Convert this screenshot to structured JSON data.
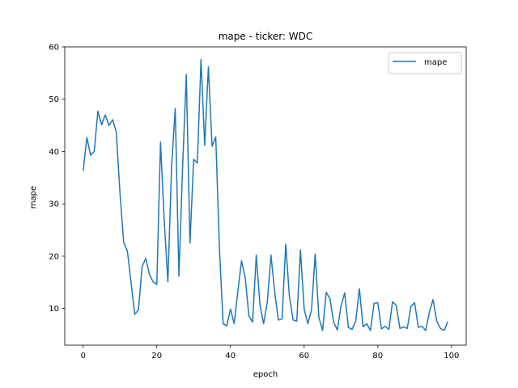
{
  "chart_data": {
    "type": "line",
    "title": "mape - ticker: WDC",
    "xlabel": "epoch",
    "ylabel": "mape",
    "xlim": [
      -5,
      104
    ],
    "ylim": [
      3,
      60
    ],
    "xticks": [
      0,
      20,
      40,
      60,
      80,
      100
    ],
    "yticks": [
      10,
      20,
      30,
      40,
      50,
      60
    ],
    "grid": false,
    "legend_position": "top-right",
    "series": [
      {
        "name": "mape",
        "color": "#1f77b4",
        "x": [
          0,
          1,
          2,
          3,
          4,
          5,
          6,
          7,
          8,
          9,
          10,
          11,
          12,
          13,
          14,
          15,
          16,
          17,
          18,
          19,
          20,
          21,
          22,
          23,
          24,
          25,
          26,
          27,
          28,
          29,
          30,
          31,
          32,
          33,
          34,
          35,
          36,
          37,
          38,
          39,
          40,
          41,
          42,
          43,
          44,
          45,
          46,
          47,
          48,
          49,
          50,
          51,
          52,
          53,
          54,
          55,
          56,
          57,
          58,
          59,
          60,
          61,
          62,
          63,
          64,
          65,
          66,
          67,
          68,
          69,
          70,
          71,
          72,
          73,
          74,
          75,
          76,
          77,
          78,
          79,
          80,
          81,
          82,
          83,
          84,
          85,
          86,
          87,
          88,
          89,
          90,
          91,
          92,
          93,
          94,
          95,
          96,
          97,
          98,
          99
        ],
        "values": [
          36.3,
          42.7,
          39.3,
          40.0,
          47.7,
          45.1,
          47.0,
          45.0,
          46.1,
          43.7,
          32.0,
          22.6,
          21.0,
          15.0,
          8.9,
          9.7,
          18.0,
          19.6,
          16.5,
          15.1,
          14.6,
          41.8,
          27.0,
          15.1,
          37.0,
          48.2,
          16.2,
          37.0,
          54.7,
          22.5,
          38.5,
          37.8,
          57.6,
          41.2,
          56.2,
          41.0,
          42.8,
          21.5,
          7.1,
          6.7,
          9.9,
          7.1,
          13.3,
          19.1,
          15.9,
          8.6,
          7.4,
          20.2,
          10.7,
          7.1,
          11.3,
          20.2,
          13.2,
          7.8,
          8.0,
          22.3,
          12.3,
          7.8,
          7.6,
          21.2,
          9.9,
          7.1,
          9.7,
          20.4,
          8.3,
          5.8,
          13.1,
          11.9,
          7.4,
          5.9,
          10.4,
          13.0,
          6.4,
          6.0,
          7.6,
          13.8,
          6.5,
          7.1,
          5.8,
          11.0,
          11.1,
          6.1,
          6.6,
          6.0,
          11.3,
          10.6,
          6.2,
          6.5,
          6.2,
          10.4,
          11.1,
          6.4,
          6.6,
          5.8,
          9.3,
          11.7,
          7.6,
          6.2,
          5.8,
          7.5
        ]
      }
    ]
  }
}
